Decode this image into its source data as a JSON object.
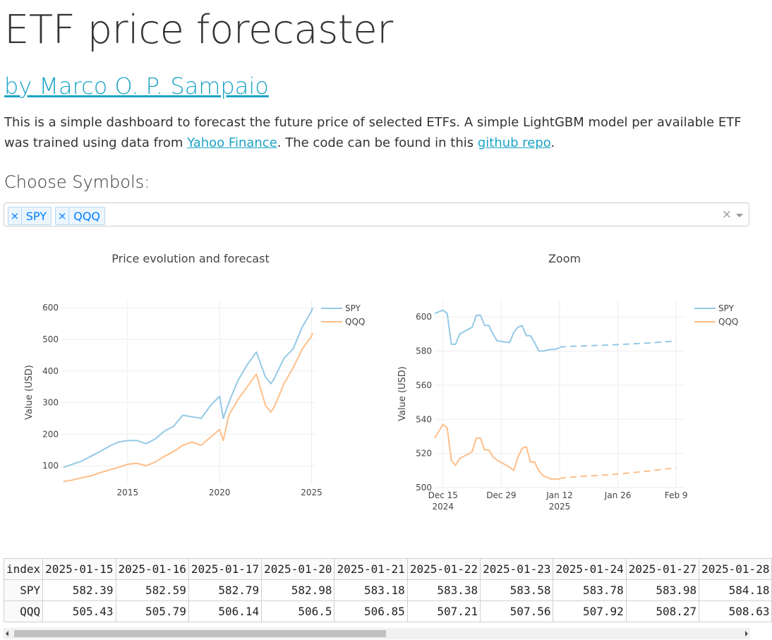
{
  "page": {
    "title": "ETF price forecaster",
    "byline": "by Marco O. P. Sampaio",
    "intro_text_1": "This is a simple dashboard to forecast the future price of selected ETFs. A simple LightGBM model per available ETF was trained using data from ",
    "intro_link_1": "Yahoo Finance",
    "intro_text_2": ". The code can be found in this ",
    "intro_link_2": "github repo",
    "intro_text_3": ".",
    "choose_label": "Choose Symbols:"
  },
  "selector": {
    "chips": [
      "SPY",
      "QQQ"
    ],
    "remove_glyph": "×",
    "clear_glyph": "×"
  },
  "colors": {
    "SPY": "#94c9e6",
    "QQQ": "#fdbf8a",
    "link": "#1ba3c6"
  },
  "chart_data": [
    {
      "type": "line",
      "title": "Price evolution and forecast",
      "ylabel": "Value (USD)",
      "xlabel": "",
      "x_ticks": [
        "2015",
        "2020",
        "2025"
      ],
      "y_ticks": [
        100,
        200,
        300,
        400,
        500,
        600
      ],
      "xlim": [
        2011.4,
        2025.25
      ],
      "ylim": [
        40,
        625
      ],
      "legend_position": "top-right",
      "series": [
        {
          "name": "SPY",
          "x": [
            2011.5,
            2012.0,
            2012.5,
            2013.0,
            2013.5,
            2014.0,
            2014.5,
            2015.0,
            2015.5,
            2016.0,
            2016.5,
            2017.0,
            2017.5,
            2018.0,
            2018.5,
            2019.0,
            2019.5,
            2020.0,
            2020.2,
            2020.5,
            2021.0,
            2021.5,
            2022.0,
            2022.5,
            2022.8,
            2023.0,
            2023.5,
            2024.0,
            2024.5,
            2025.0,
            2025.05
          ],
          "values": [
            95,
            105,
            115,
            130,
            145,
            162,
            175,
            180,
            180,
            170,
            185,
            210,
            225,
            260,
            255,
            250,
            290,
            320,
            250,
            300,
            370,
            420,
            460,
            380,
            360,
            380,
            440,
            470,
            540,
            590,
            600
          ]
        },
        {
          "name": "QQQ",
          "x": [
            2011.5,
            2012.0,
            2012.5,
            2013.0,
            2013.5,
            2014.0,
            2014.5,
            2015.0,
            2015.5,
            2016.0,
            2016.5,
            2017.0,
            2017.5,
            2018.0,
            2018.5,
            2019.0,
            2019.5,
            2020.0,
            2020.2,
            2020.5,
            2021.0,
            2021.5,
            2022.0,
            2022.5,
            2022.8,
            2023.0,
            2023.5,
            2024.0,
            2024.5,
            2025.0,
            2025.05
          ],
          "values": [
            50,
            55,
            62,
            68,
            78,
            87,
            95,
            105,
            108,
            100,
            112,
            130,
            145,
            165,
            175,
            165,
            190,
            215,
            180,
            260,
            310,
            350,
            390,
            290,
            270,
            290,
            360,
            410,
            470,
            510,
            520
          ]
        }
      ]
    },
    {
      "type": "line",
      "title": "Zoom",
      "ylabel": "Value (USD)",
      "xlabel": "",
      "x_ticks": [
        "Dec 15\n2024",
        "Dec 29",
        "Jan 12\n2025",
        "Jan 26",
        "Feb 9"
      ],
      "x_tick_days": [
        0,
        14,
        28,
        42,
        56
      ],
      "y_ticks": [
        500,
        520,
        540,
        560,
        580,
        600
      ],
      "xlim": [
        -2,
        58
      ],
      "ylim": [
        500,
        610
      ],
      "legend_position": "top-right",
      "series": [
        {
          "name": "SPY",
          "style": "solid",
          "x": [
            -2,
            0,
            1,
            2,
            3,
            4,
            7,
            8,
            9,
            10,
            11,
            12,
            13,
            16,
            17,
            18,
            19,
            20,
            21,
            22,
            23,
            24,
            26,
            27,
            28
          ],
          "values": [
            602,
            604,
            602,
            584,
            584,
            590,
            594,
            601,
            601,
            595,
            595,
            590,
            586,
            585,
            591,
            594,
            595,
            589,
            589,
            585,
            580,
            580,
            581,
            581,
            582
          ]
        },
        {
          "name": "SPY",
          "style": "dashed",
          "x": [
            28,
            31,
            35,
            38,
            42,
            45,
            49,
            52,
            56
          ],
          "values": [
            582.39,
            582.79,
            583.18,
            583.38,
            583.78,
            584.18,
            584.7,
            585.2,
            585.9
          ]
        },
        {
          "name": "QQQ",
          "style": "solid",
          "x": [
            -2,
            0,
            1,
            2,
            3,
            4,
            7,
            8,
            9,
            10,
            11,
            12,
            13,
            16,
            17,
            18,
            19,
            20,
            21,
            22,
            23,
            24,
            26,
            27,
            28
          ],
          "values": [
            529,
            537,
            535,
            516,
            513,
            517,
            521,
            529,
            529,
            522,
            522,
            518,
            516,
            512,
            510,
            518,
            523,
            524,
            515,
            515,
            510,
            507,
            505,
            505,
            505
          ]
        },
        {
          "name": "QQQ",
          "style": "dashed",
          "x": [
            28,
            31,
            35,
            38,
            42,
            45,
            49,
            52,
            56
          ],
          "values": [
            505.43,
            506.14,
            506.85,
            507.21,
            507.92,
            508.63,
            509.6,
            510.5,
            511.6
          ]
        }
      ]
    }
  ],
  "forecast_table": {
    "columns": [
      "index",
      "2025-01-15",
      "2025-01-16",
      "2025-01-17",
      "2025-01-20",
      "2025-01-21",
      "2025-01-22",
      "2025-01-23",
      "2025-01-24",
      "2025-01-27",
      "2025-01-28"
    ],
    "rows": [
      [
        "SPY",
        "582.39",
        "582.59",
        "582.79",
        "582.98",
        "583.18",
        "583.38",
        "583.58",
        "583.78",
        "583.98",
        "584.18"
      ],
      [
        "QQQ",
        "505.43",
        "505.79",
        "506.14",
        "506.5",
        "506.85",
        "507.21",
        "507.56",
        "507.92",
        "508.27",
        "508.63"
      ]
    ]
  }
}
